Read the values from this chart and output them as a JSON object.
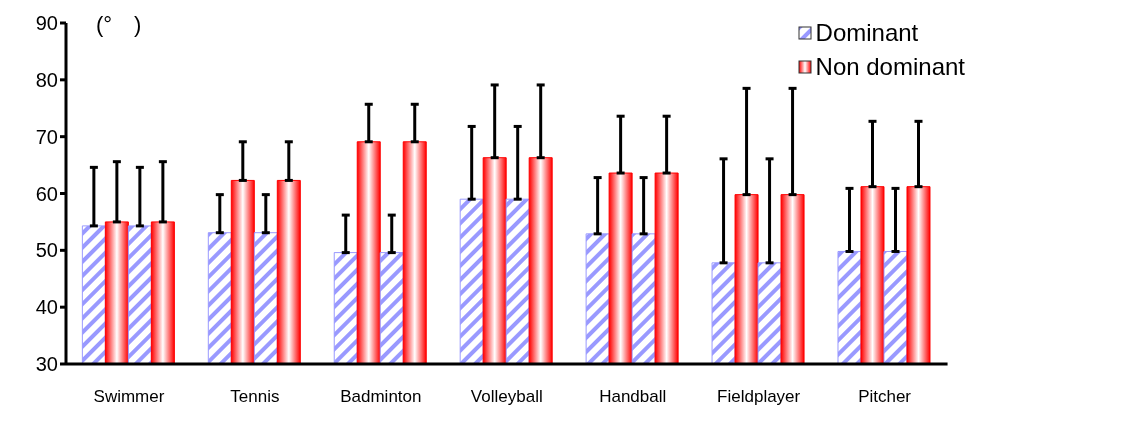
{
  "chart_data": {
    "type": "bar",
    "ylabel": "(°　)",
    "categories": [
      "Swimmer",
      "Tennis",
      "Badminton",
      "Volleyball",
      "Handball",
      "Fieldplayer",
      "Pitcher"
    ],
    "series": [
      {
        "name": "Dominant",
        "color": "#9999ff",
        "values": [
          54.3,
          53.1,
          49.6,
          59.0,
          52.9,
          47.8,
          49.8
        ],
        "errors": [
          [
            54.3,
            64.6
          ],
          [
            53.1,
            59.8
          ],
          [
            49.6,
            56.2
          ],
          [
            59.0,
            71.8
          ],
          [
            52.9,
            62.8
          ],
          [
            47.8,
            66.1
          ],
          [
            49.8,
            60.9
          ]
        ]
      },
      {
        "name": "Non dominant",
        "color": "#ff0000",
        "values": [
          55.0,
          62.3,
          69.1,
          66.3,
          63.6,
          59.8,
          61.2
        ],
        "errors": [
          [
            55.0,
            65.6
          ],
          [
            62.3,
            69.1
          ],
          [
            69.1,
            75.7
          ],
          [
            66.3,
            79.1
          ],
          [
            63.6,
            73.6
          ],
          [
            59.8,
            78.5
          ],
          [
            61.2,
            72.7
          ]
        ]
      },
      {
        "color": "#9999ff",
        "values": [
          54.3,
          53.1,
          49.6,
          59.0,
          52.9,
          47.8,
          49.8
        ],
        "errors": [
          [
            54.3,
            64.6
          ],
          [
            53.1,
            59.8
          ],
          [
            49.6,
            56.2
          ],
          [
            59.0,
            71.8
          ],
          [
            52.9,
            62.8
          ],
          [
            47.8,
            66.1
          ],
          [
            49.8,
            60.9
          ]
        ]
      },
      {
        "color": "#ff0000",
        "values": [
          55.0,
          62.3,
          69.1,
          66.3,
          63.6,
          59.8,
          61.2
        ],
        "errors": [
          [
            55.0,
            65.6
          ],
          [
            62.3,
            69.1
          ],
          [
            69.1,
            75.7
          ],
          [
            66.3,
            79.1
          ],
          [
            63.6,
            73.6
          ],
          [
            59.8,
            78.5
          ],
          [
            61.2,
            72.7
          ]
        ]
      }
    ],
    "ylim": [
      30,
      90
    ],
    "yticks": [
      30,
      40,
      50,
      60,
      70,
      80,
      90
    ],
    "grid": false,
    "legend": "top right"
  }
}
